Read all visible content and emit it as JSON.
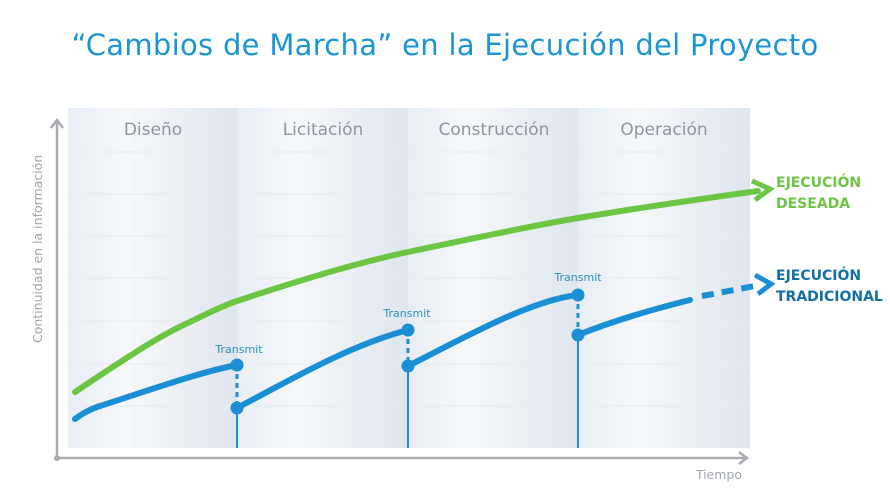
{
  "title": "“Cambios de Marcha” en la Ejecución del Proyecto",
  "y_axis_label": "Continuidad en la información",
  "x_axis_label": "Tiempo",
  "phases": [
    "Diseño",
    "Licitación",
    "Construcción",
    "Operación"
  ],
  "transmit_label": "Transmit",
  "series": {
    "desired": {
      "line1": "EJECUCIÓN",
      "line2": "DESEADA",
      "color": "#6cc644"
    },
    "traditional": {
      "line1": "EJECUCIÓN",
      "line2": "TRADICIONAL",
      "color": "#1a8fd6",
      "label_color": "#146fa5"
    }
  },
  "colors": {
    "title": "#1b95d3",
    "axis": "#a9adb1",
    "phase_text": "#8b96a2"
  }
}
